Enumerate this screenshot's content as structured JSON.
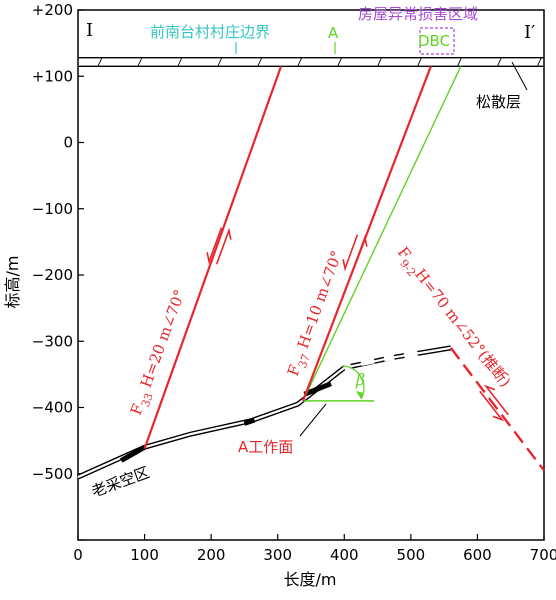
{
  "colors": {
    "fault": "#e8262c",
    "green": "#5fd324",
    "boundary": "#34c6c0",
    "purple": "#a64ad6",
    "black": "#000000"
  },
  "axes": {
    "x_title": "长度/m",
    "y_title": "标高/m",
    "x_ticks": [
      {
        "value": 0,
        "label": "0"
      },
      {
        "value": 100,
        "label": "100"
      },
      {
        "value": 200,
        "label": "200"
      },
      {
        "value": 300,
        "label": "300"
      },
      {
        "value": 400,
        "label": "400"
      },
      {
        "value": 500,
        "label": "500"
      },
      {
        "value": 600,
        "label": "600"
      },
      {
        "value": 700,
        "label": "700"
      }
    ],
    "y_ticks": [
      {
        "value": 200,
        "label": "+200"
      },
      {
        "value": 100,
        "label": "+100"
      },
      {
        "value": 0,
        "label": "0"
      },
      {
        "value": -100,
        "label": "−100"
      },
      {
        "value": -200,
        "label": "−200"
      },
      {
        "value": -300,
        "label": "−300"
      },
      {
        "value": -400,
        "label": "−400"
      },
      {
        "value": -500,
        "label": "−500"
      },
      {
        "value": -600,
        "label": ""
      }
    ],
    "xlim": [
      0,
      700
    ],
    "ylim": [
      -600,
      200
    ]
  },
  "labels": {
    "section_start": "Ⅰ",
    "section_end": "Ⅰ′",
    "village_boundary": "前南台村村庄边界",
    "point_a": "A",
    "damage_zone": "房屋异常损害区域",
    "dbc": "DBC",
    "loose_layer": "松散层",
    "goaf": "老采空区",
    "workface": "A工作面",
    "beta": "β"
  },
  "faults": {
    "f33": {
      "name": "F",
      "sub": "33",
      "params": " H=20 m∠70°"
    },
    "f37": {
      "name": "F",
      "sub": "37",
      "params": " H=10 m∠70°"
    },
    "f9": {
      "name": "F",
      "sub": "9-2",
      "params": "H=70 m∠52°(推断)"
    }
  },
  "geometry": {
    "loose_top": 128,
    "loose_bottom": 115,
    "seam": [
      [
        0,
        -505
      ],
      [
        100,
        -460
      ],
      [
        170,
        -440
      ],
      [
        260,
        -420
      ],
      [
        330,
        -395
      ],
      [
        400,
        -340
      ],
      [
        470,
        -325
      ],
      [
        560,
        -310
      ]
    ],
    "f33": [
      [
        100,
        -462
      ],
      [
        305,
        115
      ]
    ],
    "f37": [
      [
        338,
        -390
      ],
      [
        530,
        115
      ]
    ],
    "f9": [
      [
        560,
        -310
      ],
      [
        700,
        -495
      ]
    ],
    "green_line": [
      [
        338,
        -390
      ],
      [
        575,
        115
      ]
    ],
    "beta_ray": [
      [
        338,
        -390
      ],
      [
        445,
        -390
      ]
    ],
    "goaf_thick": [
      [
        65,
        -480
      ],
      [
        100,
        -460
      ]
    ],
    "mid_thick": [
      [
        250,
        -424
      ],
      [
        265,
        -419
      ]
    ],
    "work_thick": [
      [
        340,
        -380
      ],
      [
        380,
        -364
      ]
    ],
    "gap_segments": [
      [
        [
          400,
          -340
        ],
        [
          410,
          -337
        ]
      ],
      [
        [
          425,
          -333
        ],
        [
          445,
          -329
        ]
      ],
      [
        [
          460,
          -326
        ],
        [
          475,
          -324
        ]
      ],
      [
        [
          490,
          -321
        ],
        [
          510,
          -318
        ]
      ]
    ]
  }
}
